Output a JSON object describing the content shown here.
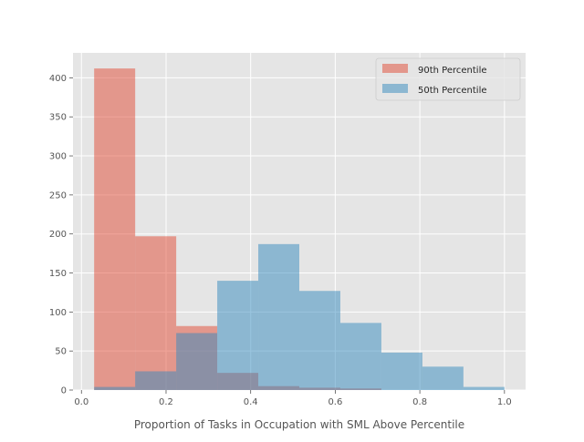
{
  "chart_data": {
    "type": "bar",
    "title": "",
    "xlabel": "Proportion of Tasks in Occupation with SML Above Percentile",
    "ylabel": "",
    "xlim": [
      -0.02,
      1.05
    ],
    "ylim": [
      0,
      432
    ],
    "x_ticks": [
      "0.0",
      "0.2",
      "0.4",
      "0.6",
      "0.8",
      "1.0"
    ],
    "y_ticks": [
      "0",
      "50",
      "100",
      "150",
      "200",
      "250",
      "300",
      "350",
      "400"
    ],
    "grid": true,
    "legend_position": "top-right",
    "series": [
      {
        "name": "90th Percentile",
        "color": "#E24A33",
        "opacity": 0.5,
        "bins": [
          {
            "x0": 0.03,
            "x1": 0.127,
            "value": 412
          },
          {
            "x0": 0.127,
            "x1": 0.224,
            "value": 197
          },
          {
            "x0": 0.224,
            "x1": 0.321,
            "value": 82
          },
          {
            "x0": 0.321,
            "x1": 0.418,
            "value": 22
          },
          {
            "x0": 0.418,
            "x1": 0.515,
            "value": 5
          },
          {
            "x0": 0.515,
            "x1": 0.612,
            "value": 3
          },
          {
            "x0": 0.612,
            "x1": 0.709,
            "value": 2
          }
        ]
      },
      {
        "name": "50th Percentile",
        "color": "#348ABD",
        "opacity": 0.5,
        "bins": [
          {
            "x0": 0.03,
            "x1": 0.127,
            "value": 4
          },
          {
            "x0": 0.127,
            "x1": 0.224,
            "value": 24
          },
          {
            "x0": 0.224,
            "x1": 0.321,
            "value": 73
          },
          {
            "x0": 0.321,
            "x1": 0.418,
            "value": 140
          },
          {
            "x0": 0.418,
            "x1": 0.515,
            "value": 187
          },
          {
            "x0": 0.515,
            "x1": 0.612,
            "value": 127
          },
          {
            "x0": 0.612,
            "x1": 0.709,
            "value": 86
          },
          {
            "x0": 0.709,
            "x1": 0.806,
            "value": 48
          },
          {
            "x0": 0.806,
            "x1": 0.903,
            "value": 30
          },
          {
            "x0": 0.903,
            "x1": 1.0,
            "value": 4
          }
        ]
      }
    ]
  }
}
